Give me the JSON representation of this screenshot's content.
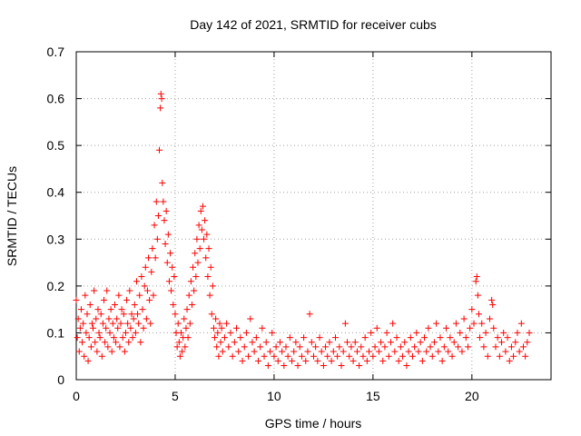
{
  "chart_data": {
    "type": "scatter",
    "title": "Day 142 of 2021, SRMTID for receiver cubs",
    "xlabel": "GPS time / hours",
    "ylabel": "SRMTID / TECUs",
    "xlim": [
      0,
      24
    ],
    "ylim": [
      0,
      0.7
    ],
    "xticks": [
      0,
      5,
      10,
      15,
      20
    ],
    "xtick_labels": [
      "0",
      "5",
      "10",
      "15",
      "20"
    ],
    "yticks": [
      0,
      0.1,
      0.2,
      0.3,
      0.4,
      0.5,
      0.6,
      0.7
    ],
    "ytick_labels": [
      "0",
      "0.1",
      "0.2",
      "0.3",
      "0.4",
      "0.5",
      "0.6",
      "0.7"
    ],
    "grid": true,
    "marker": "+",
    "color": "#ff0000",
    "series": [
      {
        "name": "SRMTID",
        "points": [
          [
            0.0,
            0.17
          ],
          [
            0.05,
            0.09
          ],
          [
            0.1,
            0.13
          ],
          [
            0.15,
            0.06
          ],
          [
            0.2,
            0.11
          ],
          [
            0.25,
            0.15
          ],
          [
            0.3,
            0.08
          ],
          [
            0.35,
            0.12
          ],
          [
            0.4,
            0.05
          ],
          [
            0.45,
            0.18
          ],
          [
            0.5,
            0.1
          ],
          [
            0.55,
            0.14
          ],
          [
            0.6,
            0.04
          ],
          [
            0.65,
            0.09
          ],
          [
            0.7,
            0.16
          ],
          [
            0.75,
            0.07
          ],
          [
            0.8,
            0.12
          ],
          [
            0.85,
            0.11
          ],
          [
            0.9,
            0.19
          ],
          [
            0.95,
            0.08
          ],
          [
            1.0,
            0.13
          ],
          [
            1.05,
            0.06
          ],
          [
            1.1,
            0.15
          ],
          [
            1.15,
            0.1
          ],
          [
            1.2,
            0.09
          ],
          [
            1.25,
            0.14
          ],
          [
            1.3,
            0.05
          ],
          [
            1.35,
            0.12
          ],
          [
            1.4,
            0.17
          ],
          [
            1.45,
            0.08
          ],
          [
            1.5,
            0.11
          ],
          [
            1.55,
            0.19
          ],
          [
            1.6,
            0.07
          ],
          [
            1.65,
            0.13
          ],
          [
            1.7,
            0.1
          ],
          [
            1.75,
            0.15
          ],
          [
            1.8,
            0.06
          ],
          [
            1.85,
            0.12
          ],
          [
            1.9,
            0.09
          ],
          [
            1.95,
            0.16
          ],
          [
            2.0,
            0.08
          ],
          [
            2.05,
            0.13
          ],
          [
            2.1,
            0.11
          ],
          [
            2.15,
            0.18
          ],
          [
            2.2,
            0.07
          ],
          [
            2.25,
            0.12
          ],
          [
            2.3,
            0.15
          ],
          [
            2.35,
            0.09
          ],
          [
            2.4,
            0.14
          ],
          [
            2.45,
            0.06
          ],
          [
            2.5,
            0.1
          ],
          [
            2.55,
            0.17
          ],
          [
            2.6,
            0.12
          ],
          [
            2.65,
            0.08
          ],
          [
            2.7,
            0.19
          ],
          [
            2.75,
            0.11
          ],
          [
            2.8,
            0.14
          ],
          [
            2.85,
            0.09
          ],
          [
            2.9,
            0.13
          ],
          [
            2.95,
            0.16
          ],
          [
            3.0,
            0.1
          ],
          [
            3.05,
            0.21
          ],
          [
            3.1,
            0.14
          ],
          [
            3.15,
            0.12
          ],
          [
            3.2,
            0.18
          ],
          [
            3.25,
            0.08
          ],
          [
            3.3,
            0.22
          ],
          [
            3.35,
            0.15
          ],
          [
            3.4,
            0.11
          ],
          [
            3.45,
            0.2
          ],
          [
            3.5,
            0.24
          ],
          [
            3.55,
            0.13
          ],
          [
            3.6,
            0.19
          ],
          [
            3.65,
            0.26
          ],
          [
            3.7,
            0.17
          ],
          [
            3.75,
            0.12
          ],
          [
            3.8,
            0.23
          ],
          [
            3.85,
            0.28
          ],
          [
            3.9,
            0.18
          ],
          [
            3.95,
            0.33
          ],
          [
            4.0,
            0.26
          ],
          [
            4.05,
            0.38
          ],
          [
            4.1,
            0.3
          ],
          [
            4.15,
            0.35
          ],
          [
            4.2,
            0.49
          ],
          [
            4.25,
            0.58
          ],
          [
            4.28,
            0.61
          ],
          [
            4.32,
            0.6
          ],
          [
            4.35,
            0.42
          ],
          [
            4.4,
            0.38
          ],
          [
            4.45,
            0.34
          ],
          [
            4.5,
            0.29
          ],
          [
            4.55,
            0.36
          ],
          [
            4.6,
            0.25
          ],
          [
            4.65,
            0.31
          ],
          [
            4.7,
            0.21
          ],
          [
            4.75,
            0.27
          ],
          [
            4.8,
            0.19
          ],
          [
            4.85,
            0.24
          ],
          [
            4.9,
            0.16
          ],
          [
            4.95,
            0.22
          ],
          [
            5.0,
            0.14
          ],
          [
            5.05,
            0.1
          ],
          [
            5.1,
            0.07
          ],
          [
            5.15,
            0.12
          ],
          [
            5.2,
            0.08
          ],
          [
            5.25,
            0.05
          ],
          [
            5.3,
            0.1
          ],
          [
            5.35,
            0.06
          ],
          [
            5.4,
            0.09
          ],
          [
            5.45,
            0.13
          ],
          [
            5.5,
            0.07
          ],
          [
            5.55,
            0.11
          ],
          [
            5.6,
            0.15
          ],
          [
            5.65,
            0.09
          ],
          [
            5.7,
            0.18
          ],
          [
            5.75,
            0.12
          ],
          [
            5.8,
            0.21
          ],
          [
            5.85,
            0.16
          ],
          [
            5.9,
            0.24
          ],
          [
            5.95,
            0.19
          ],
          [
            6.0,
            0.27
          ],
          [
            6.05,
            0.22
          ],
          [
            6.1,
            0.3
          ],
          [
            6.15,
            0.25
          ],
          [
            6.2,
            0.33
          ],
          [
            6.25,
            0.28
          ],
          [
            6.3,
            0.36
          ],
          [
            6.35,
            0.32
          ],
          [
            6.4,
            0.37
          ],
          [
            6.45,
            0.3
          ],
          [
            6.5,
            0.34
          ],
          [
            6.55,
            0.26
          ],
          [
            6.6,
            0.31
          ],
          [
            6.65,
            0.22
          ],
          [
            6.7,
            0.28
          ],
          [
            6.75,
            0.18
          ],
          [
            6.8,
            0.24
          ],
          [
            6.85,
            0.14
          ],
          [
            6.9,
            0.2
          ],
          [
            6.95,
            0.11
          ],
          [
            7.0,
            0.09
          ],
          [
            7.05,
            0.13
          ],
          [
            7.1,
            0.07
          ],
          [
            7.15,
            0.1
          ],
          [
            7.2,
            0.05
          ],
          [
            7.25,
            0.12
          ],
          [
            7.3,
            0.08
          ],
          [
            7.35,
            0.11
          ],
          [
            7.4,
            0.06
          ],
          [
            7.5,
            0.09
          ],
          [
            7.6,
            0.12
          ],
          [
            7.7,
            0.07
          ],
          [
            7.8,
            0.1
          ],
          [
            7.9,
            0.05
          ],
          [
            8.0,
            0.08
          ],
          [
            8.1,
            0.11
          ],
          [
            8.2,
            0.06
          ],
          [
            8.3,
            0.09
          ],
          [
            8.4,
            0.04
          ],
          [
            8.5,
            0.07
          ],
          [
            8.6,
            0.1
          ],
          [
            8.7,
            0.05
          ],
          [
            8.8,
            0.13
          ],
          [
            8.9,
            0.08
          ],
          [
            9.0,
            0.06
          ],
          [
            9.1,
            0.09
          ],
          [
            9.2,
            0.04
          ],
          [
            9.3,
            0.07
          ],
          [
            9.4,
            0.11
          ],
          [
            9.5,
            0.05
          ],
          [
            9.6,
            0.08
          ],
          [
            9.7,
            0.03
          ],
          [
            9.8,
            0.06
          ],
          [
            9.9,
            0.1
          ],
          [
            10.0,
            0.05
          ],
          [
            10.1,
            0.07
          ],
          [
            10.2,
            0.04
          ],
          [
            10.3,
            0.08
          ],
          [
            10.4,
            0.06
          ],
          [
            10.5,
            0.03
          ],
          [
            10.6,
            0.07
          ],
          [
            10.7,
            0.05
          ],
          [
            10.8,
            0.09
          ],
          [
            10.9,
            0.04
          ],
          [
            11.0,
            0.06
          ],
          [
            11.1,
            0.08
          ],
          [
            11.2,
            0.03
          ],
          [
            11.3,
            0.07
          ],
          [
            11.4,
            0.05
          ],
          [
            11.5,
            0.09
          ],
          [
            11.6,
            0.04
          ],
          [
            11.7,
            0.06
          ],
          [
            11.8,
            0.14
          ],
          [
            11.9,
            0.08
          ],
          [
            12.0,
            0.05
          ],
          [
            12.1,
            0.07
          ],
          [
            12.2,
            0.04
          ],
          [
            12.3,
            0.09
          ],
          [
            12.4,
            0.06
          ],
          [
            12.5,
            0.03
          ],
          [
            12.6,
            0.07
          ],
          [
            12.7,
            0.05
          ],
          [
            12.8,
            0.08
          ],
          [
            12.9,
            0.04
          ],
          [
            13.0,
            0.06
          ],
          [
            13.1,
            0.09
          ],
          [
            13.2,
            0.05
          ],
          [
            13.3,
            0.07
          ],
          [
            13.4,
            0.03
          ],
          [
            13.5,
            0.06
          ],
          [
            13.6,
            0.12
          ],
          [
            13.7,
            0.08
          ],
          [
            13.8,
            0.05
          ],
          [
            13.9,
            0.07
          ],
          [
            14.0,
            0.04
          ],
          [
            14.1,
            0.08
          ],
          [
            14.2,
            0.06
          ],
          [
            14.3,
            0.03
          ],
          [
            14.4,
            0.07
          ],
          [
            14.5,
            0.05
          ],
          [
            14.6,
            0.09
          ],
          [
            14.7,
            0.04
          ],
          [
            14.8,
            0.06
          ],
          [
            14.9,
            0.1
          ],
          [
            15.0,
            0.05
          ],
          [
            15.1,
            0.07
          ],
          [
            15.2,
            0.11
          ],
          [
            15.3,
            0.06
          ],
          [
            15.4,
            0.08
          ],
          [
            15.5,
            0.04
          ],
          [
            15.6,
            0.07
          ],
          [
            15.7,
            0.1
          ],
          [
            15.8,
            0.05
          ],
          [
            15.9,
            0.08
          ],
          [
            16.0,
            0.12
          ],
          [
            16.1,
            0.06
          ],
          [
            16.2,
            0.09
          ],
          [
            16.3,
            0.04
          ],
          [
            16.4,
            0.07
          ],
          [
            16.5,
            0.05
          ],
          [
            16.6,
            0.08
          ],
          [
            16.7,
            0.03
          ],
          [
            16.8,
            0.06
          ],
          [
            16.9,
            0.09
          ],
          [
            17.0,
            0.05
          ],
          [
            17.1,
            0.07
          ],
          [
            17.2,
            0.1
          ],
          [
            17.3,
            0.06
          ],
          [
            17.4,
            0.08
          ],
          [
            17.5,
            0.04
          ],
          [
            17.6,
            0.09
          ],
          [
            17.7,
            0.06
          ],
          [
            17.8,
            0.11
          ],
          [
            17.9,
            0.07
          ],
          [
            18.0,
            0.05
          ],
          [
            18.1,
            0.08
          ],
          [
            18.2,
            0.12
          ],
          [
            18.3,
            0.06
          ],
          [
            18.4,
            0.09
          ],
          [
            18.5,
            0.04
          ],
          [
            18.6,
            0.07
          ],
          [
            18.7,
            0.11
          ],
          [
            18.8,
            0.06
          ],
          [
            18.9,
            0.09
          ],
          [
            19.0,
            0.05
          ],
          [
            19.1,
            0.08
          ],
          [
            19.2,
            0.12
          ],
          [
            19.3,
            0.07
          ],
          [
            19.4,
            0.1
          ],
          [
            19.5,
            0.06
          ],
          [
            19.6,
            0.13
          ],
          [
            19.7,
            0.09
          ],
          [
            19.8,
            0.07
          ],
          [
            19.9,
            0.11
          ],
          [
            20.0,
            0.15
          ],
          [
            20.1,
            0.12
          ],
          [
            20.2,
            0.21
          ],
          [
            20.25,
            0.22
          ],
          [
            20.3,
            0.18
          ],
          [
            20.35,
            0.14
          ],
          [
            20.4,
            0.09
          ],
          [
            20.5,
            0.12
          ],
          [
            20.6,
            0.07
          ],
          [
            20.7,
            0.1
          ],
          [
            20.8,
            0.05
          ],
          [
            20.9,
            0.13
          ],
          [
            21.0,
            0.17
          ],
          [
            21.05,
            0.16
          ],
          [
            21.1,
            0.11
          ],
          [
            21.2,
            0.07
          ],
          [
            21.3,
            0.09
          ],
          [
            21.4,
            0.05
          ],
          [
            21.5,
            0.08
          ],
          [
            21.6,
            0.1
          ],
          [
            21.7,
            0.06
          ],
          [
            21.8,
            0.09
          ],
          [
            21.9,
            0.04
          ],
          [
            22.0,
            0.07
          ],
          [
            22.1,
            0.05
          ],
          [
            22.2,
            0.08
          ],
          [
            22.3,
            0.1
          ],
          [
            22.4,
            0.06
          ],
          [
            22.5,
            0.12
          ],
          [
            22.6,
            0.07
          ],
          [
            22.7,
            0.05
          ],
          [
            22.8,
            0.08
          ],
          [
            22.9,
            0.1
          ]
        ]
      }
    ]
  }
}
